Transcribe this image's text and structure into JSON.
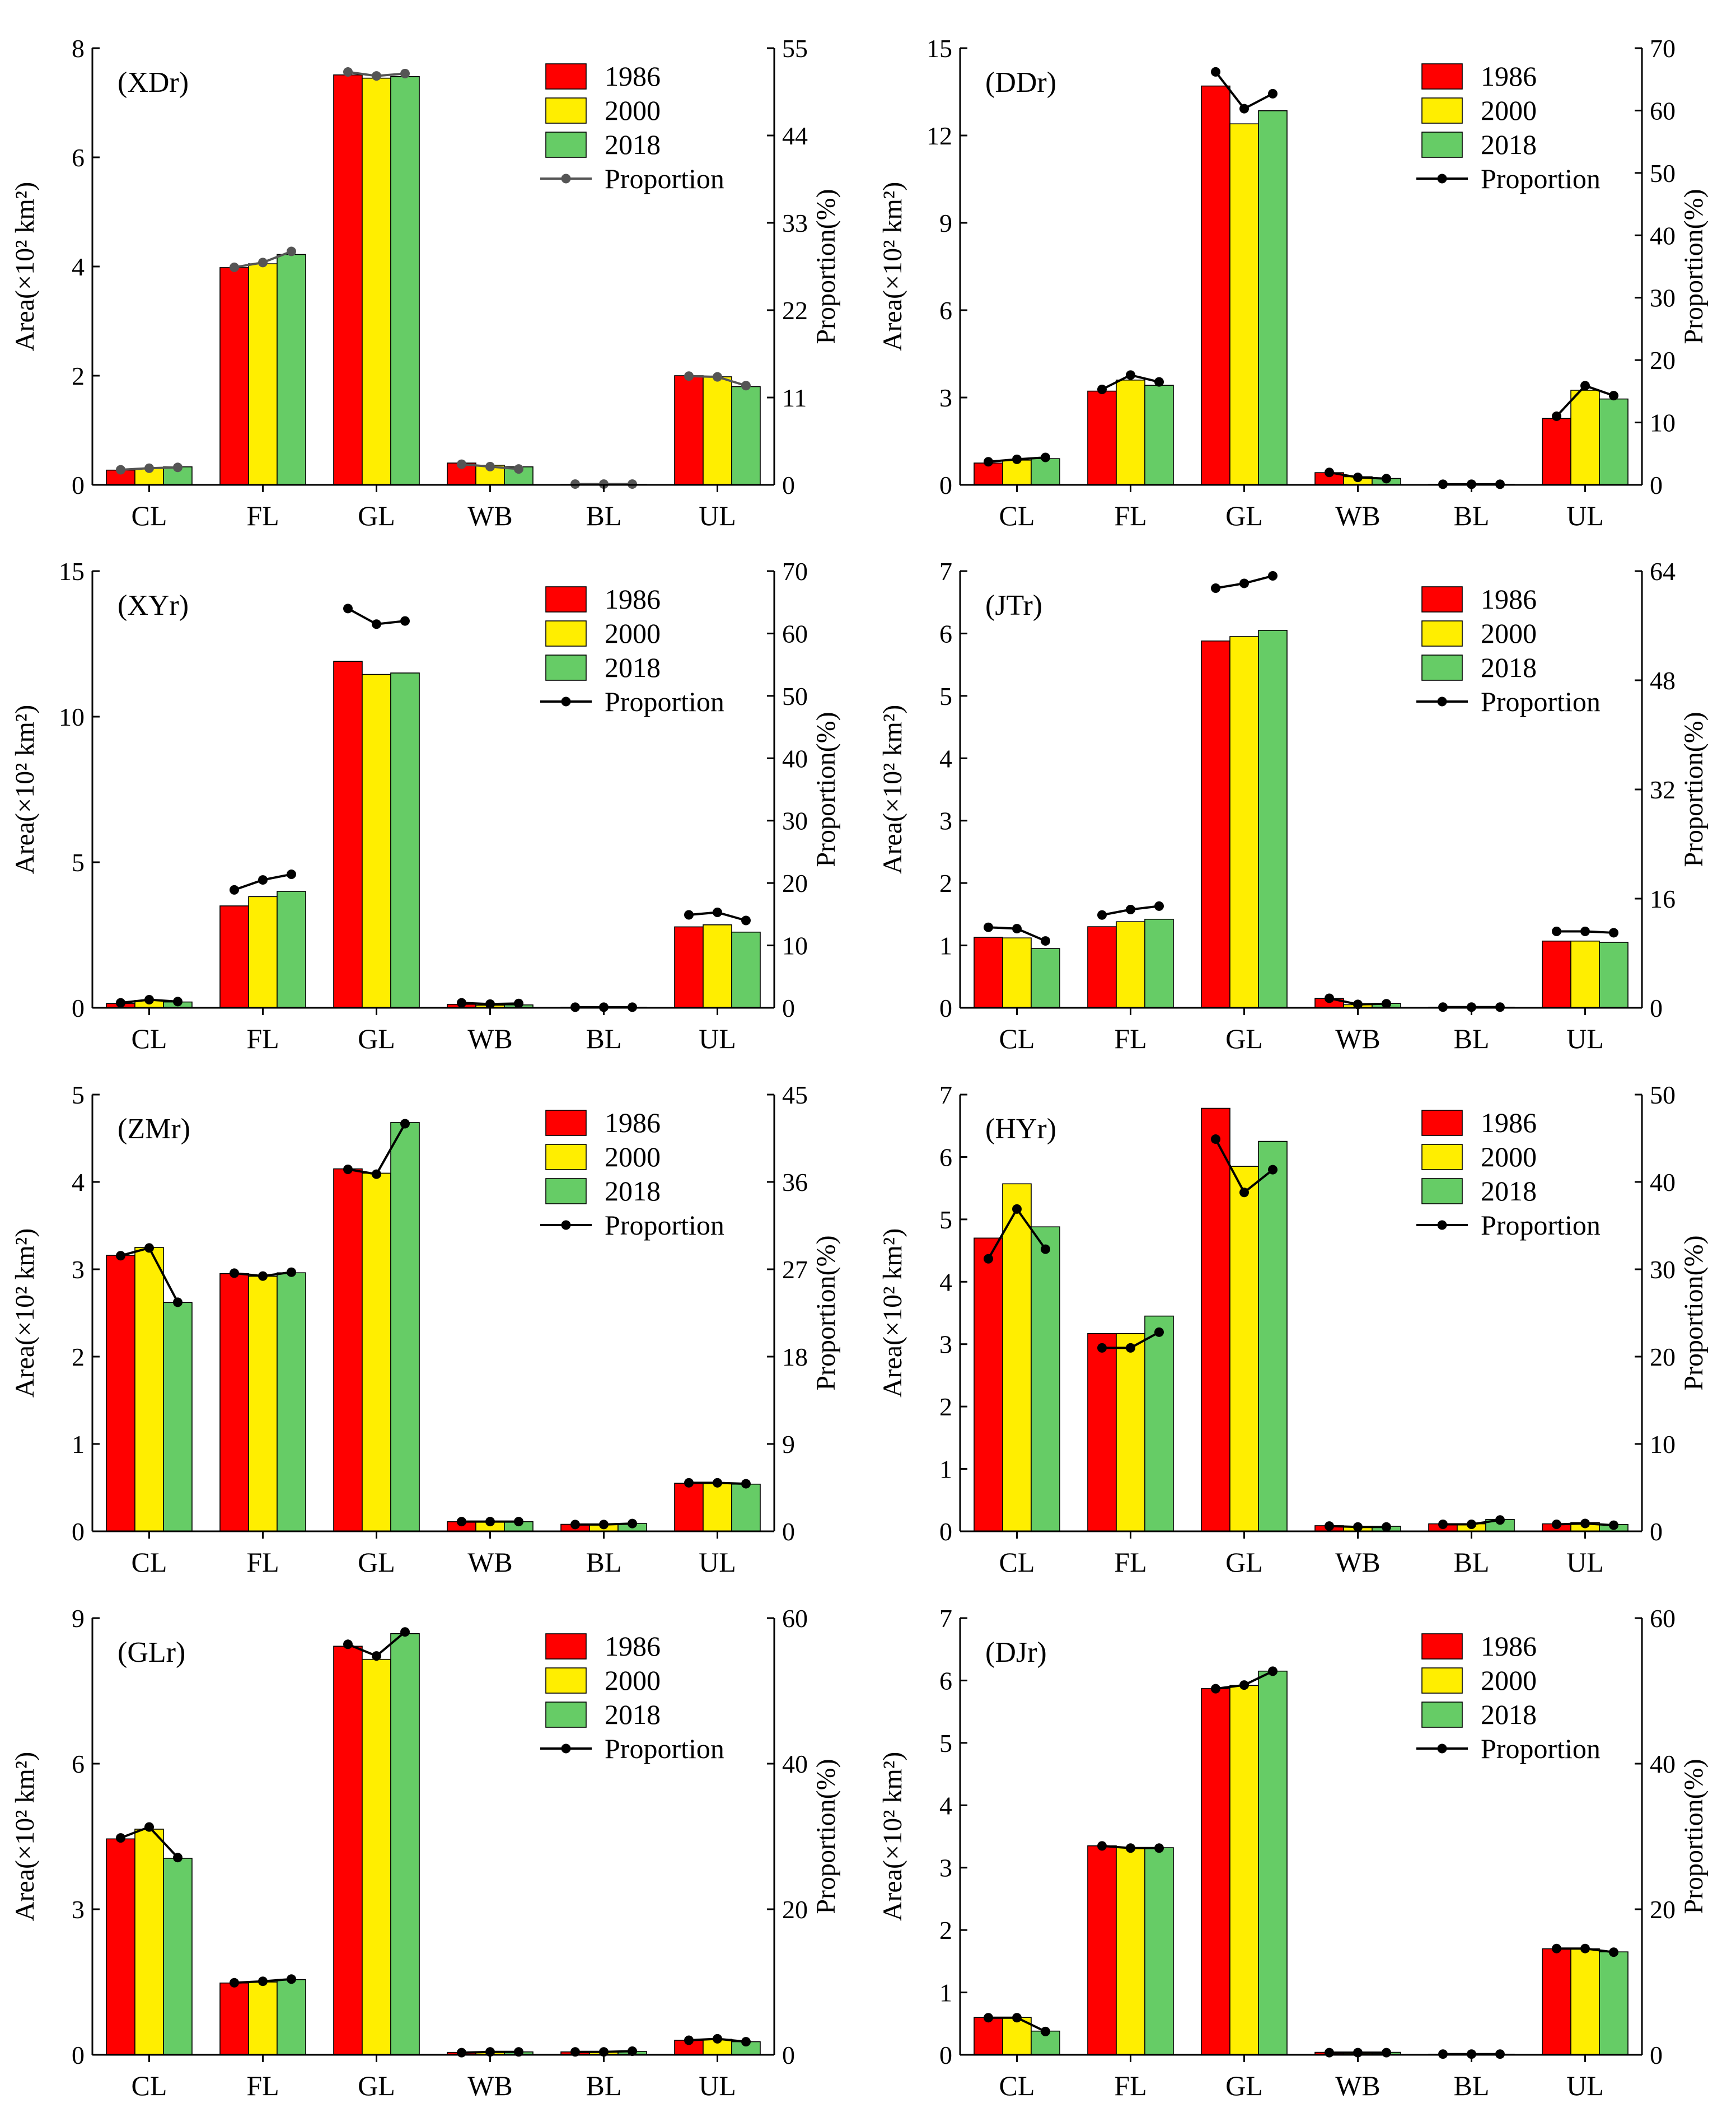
{
  "figure": {
    "categories": [
      "CL",
      "FL",
      "GL",
      "WB",
      "BL",
      "UL"
    ],
    "legend": [
      "1986",
      "2000",
      "2018",
      "Proportion"
    ],
    "y_left_label": "Area(×10² km²)",
    "y_right_label": "Proportion(%)",
    "colors": {
      "1986": "#ff0000",
      "2000": "#ffee00",
      "2018": "#66cc66",
      "line": "#000000",
      "line_alt": "#555555"
    }
  },
  "chart_data": [
    {
      "type": "bar",
      "panel_label": "(XDr)",
      "line_color": "#555555",
      "categories": [
        "CL",
        "FL",
        "GL",
        "WB",
        "BL",
        "UL"
      ],
      "ylim": [
        0,
        8
      ],
      "yticks": [
        0,
        2,
        4,
        6,
        8
      ],
      "y2lim": [
        0,
        55
      ],
      "y2ticks": [
        0,
        11,
        22,
        33,
        44,
        55
      ],
      "xlabel": "",
      "ylabel": "Area(×10² km²)",
      "y2label": "Proportion(%)",
      "series": [
        {
          "name": "1986",
          "values": [
            0.27,
            3.98,
            7.51,
            0.4,
            0.01,
            2.0
          ]
        },
        {
          "name": "2000",
          "values": [
            0.3,
            4.05,
            7.45,
            0.36,
            0.01,
            1.98
          ]
        },
        {
          "name": "2018",
          "values": [
            0.33,
            4.22,
            7.48,
            0.33,
            0.01,
            1.8
          ]
        }
      ],
      "proportion": [
        [
          1.9,
          2.1,
          2.2
        ],
        [
          27.4,
          28.0,
          29.4
        ],
        [
          52.0,
          51.5,
          51.8
        ],
        [
          2.6,
          2.3,
          2.0
        ],
        [
          0.1,
          0.1,
          0.1
        ],
        [
          13.7,
          13.6,
          12.5
        ]
      ]
    },
    {
      "type": "bar",
      "panel_label": "(DDr)",
      "line_color": "#000000",
      "categories": [
        "CL",
        "FL",
        "GL",
        "WB",
        "BL",
        "UL"
      ],
      "ylim": [
        0,
        15
      ],
      "yticks": [
        0,
        3,
        6,
        9,
        12,
        15
      ],
      "y2lim": [
        0,
        70
      ],
      "y2ticks": [
        0,
        10,
        20,
        30,
        40,
        50,
        60,
        70
      ],
      "xlabel": "",
      "ylabel": "Area(×10² km²)",
      "y2label": "Proportion(%)",
      "series": [
        {
          "name": "1986",
          "values": [
            0.75,
            3.22,
            13.7,
            0.42,
            0.02,
            2.28
          ]
        },
        {
          "name": "2000",
          "values": [
            0.85,
            3.6,
            12.4,
            0.28,
            0.02,
            3.25
          ]
        },
        {
          "name": "2018",
          "values": [
            0.9,
            3.42,
            12.85,
            0.22,
            0.02,
            2.95
          ]
        }
      ],
      "proportion": [
        [
          3.7,
          4.1,
          4.4
        ],
        [
          15.3,
          17.6,
          16.5
        ],
        [
          66.2,
          60.3,
          62.7
        ],
        [
          2.0,
          1.2,
          1.0
        ],
        [
          0.1,
          0.1,
          0.1
        ],
        [
          11.0,
          15.9,
          14.3
        ]
      ]
    },
    {
      "type": "bar",
      "panel_label": "(XYr)",
      "line_color": "#000000",
      "categories": [
        "CL",
        "FL",
        "GL",
        "WB",
        "BL",
        "UL"
      ],
      "ylim": [
        0,
        15
      ],
      "yticks": [
        0,
        5,
        10,
        15
      ],
      "y2lim": [
        0,
        70
      ],
      "y2ticks": [
        0,
        10,
        20,
        30,
        40,
        50,
        60,
        70
      ],
      "xlabel": "",
      "ylabel": "Area(×10² km²)",
      "y2label": "Proportion(%)",
      "series": [
        {
          "name": "1986",
          "values": [
            0.15,
            3.5,
            11.9,
            0.12,
            0.02,
            2.78
          ]
        },
        {
          "name": "2000",
          "values": [
            0.25,
            3.82,
            11.45,
            0.09,
            0.02,
            2.85
          ]
        },
        {
          "name": "2018",
          "values": [
            0.2,
            4.0,
            11.5,
            0.1,
            0.02,
            2.6
          ]
        }
      ],
      "proportion": [
        [
          0.8,
          1.3,
          1.0
        ],
        [
          18.9,
          20.5,
          21.4
        ],
        [
          64.0,
          61.5,
          62.0
        ],
        [
          0.8,
          0.6,
          0.7
        ],
        [
          0.1,
          0.1,
          0.1
        ],
        [
          14.9,
          15.3,
          14.0
        ]
      ]
    },
    {
      "type": "bar",
      "panel_label": "(JTr)",
      "line_color": "#000000",
      "categories": [
        "CL",
        "FL",
        "GL",
        "WB",
        "BL",
        "UL"
      ],
      "ylim": [
        0,
        7
      ],
      "yticks": [
        0,
        1,
        2,
        3,
        4,
        5,
        6,
        7
      ],
      "y2lim": [
        0,
        64
      ],
      "y2ticks": [
        0,
        16,
        32,
        48,
        64
      ],
      "xlabel": "",
      "ylabel": "Area(×10² km²)",
      "y2label": "Proportion(%)",
      "series": [
        {
          "name": "1986",
          "values": [
            1.13,
            1.3,
            5.88,
            0.15,
            0.01,
            1.07
          ]
        },
        {
          "name": "2000",
          "values": [
            1.12,
            1.38,
            5.95,
            0.05,
            0.01,
            1.07
          ]
        },
        {
          "name": "2018",
          "values": [
            0.95,
            1.42,
            6.05,
            0.07,
            0.01,
            1.05
          ]
        }
      ],
      "proportion": [
        [
          11.8,
          11.6,
          9.8
        ],
        [
          13.6,
          14.4,
          14.9
        ],
        [
          61.5,
          62.2,
          63.3
        ],
        [
          1.4,
          0.5,
          0.6
        ],
        [
          0.1,
          0.1,
          0.1
        ],
        [
          11.2,
          11.2,
          11.0
        ]
      ]
    },
    {
      "type": "bar",
      "panel_label": "(ZMr)",
      "line_color": "#000000",
      "categories": [
        "CL",
        "FL",
        "GL",
        "WB",
        "BL",
        "UL"
      ],
      "ylim": [
        0,
        5
      ],
      "yticks": [
        0,
        1,
        2,
        3,
        4,
        5
      ],
      "y2lim": [
        0,
        45
      ],
      "y2ticks": [
        0,
        9,
        18,
        27,
        36,
        45
      ],
      "xlabel": "",
      "ylabel": "Area(×10² km²)",
      "y2label": "Proportion(%)",
      "series": [
        {
          "name": "1986",
          "values": [
            3.16,
            2.95,
            4.15,
            0.11,
            0.08,
            0.55
          ]
        },
        {
          "name": "2000",
          "values": [
            3.25,
            2.92,
            4.1,
            0.11,
            0.08,
            0.55
          ]
        },
        {
          "name": "2018",
          "values": [
            2.62,
            2.96,
            4.68,
            0.11,
            0.09,
            0.54
          ]
        }
      ],
      "proportion": [
        [
          28.4,
          29.2,
          23.6
        ],
        [
          26.6,
          26.3,
          26.7
        ],
        [
          37.3,
          36.8,
          42.0
        ],
        [
          1.0,
          1.0,
          1.0
        ],
        [
          0.7,
          0.7,
          0.8
        ],
        [
          5.0,
          5.0,
          4.9
        ]
      ]
    },
    {
      "type": "bar",
      "panel_label": "(HYr)",
      "line_color": "#000000",
      "categories": [
        "CL",
        "FL",
        "GL",
        "WB",
        "BL",
        "UL"
      ],
      "ylim": [
        0,
        7
      ],
      "yticks": [
        0,
        1,
        2,
        3,
        4,
        5,
        6,
        7
      ],
      "y2lim": [
        0,
        50
      ],
      "y2ticks": [
        0,
        10,
        20,
        30,
        40,
        50
      ],
      "xlabel": "",
      "ylabel": "Area(×10² km²)",
      "y2label": "Proportion(%)",
      "series": [
        {
          "name": "1986",
          "values": [
            4.7,
            3.17,
            6.78,
            0.09,
            0.12,
            0.12
          ]
        },
        {
          "name": "2000",
          "values": [
            5.57,
            3.17,
            5.85,
            0.08,
            0.12,
            0.14
          ]
        },
        {
          "name": "2018",
          "values": [
            4.88,
            3.45,
            6.25,
            0.08,
            0.19,
            0.11
          ]
        }
      ],
      "proportion": [
        [
          31.2,
          36.9,
          32.3
        ],
        [
          21.0,
          21.0,
          22.8
        ],
        [
          44.9,
          38.8,
          41.4
        ],
        [
          0.6,
          0.5,
          0.5
        ],
        [
          0.8,
          0.8,
          1.3
        ],
        [
          0.8,
          0.9,
          0.7
        ]
      ]
    },
    {
      "type": "bar",
      "panel_label": "(GLr)",
      "line_color": "#000000",
      "categories": [
        "CL",
        "FL",
        "GL",
        "WB",
        "BL",
        "UL"
      ],
      "ylim": [
        0,
        9
      ],
      "yticks": [
        0,
        3,
        6,
        9
      ],
      "y2lim": [
        0,
        60
      ],
      "y2ticks": [
        0,
        20,
        40,
        60
      ],
      "xlabel": "",
      "ylabel": "Area(×10² km²)",
      "y2label": "Proportion(%)",
      "series": [
        {
          "name": "1986",
          "values": [
            4.45,
            1.48,
            8.42,
            0.05,
            0.06,
            0.3
          ]
        },
        {
          "name": "2000",
          "values": [
            4.65,
            1.5,
            8.15,
            0.06,
            0.06,
            0.32
          ]
        },
        {
          "name": "2018",
          "values": [
            4.05,
            1.55,
            8.68,
            0.06,
            0.07,
            0.27
          ]
        }
      ],
      "proportion": [
        [
          29.8,
          31.3,
          27.1
        ],
        [
          9.9,
          10.1,
          10.4
        ],
        [
          56.4,
          54.8,
          58.1
        ],
        [
          0.3,
          0.4,
          0.4
        ],
        [
          0.4,
          0.4,
          0.5
        ],
        [
          2.0,
          2.2,
          1.8
        ]
      ]
    },
    {
      "type": "bar",
      "panel_label": "(DJr)",
      "line_color": "#000000",
      "categories": [
        "CL",
        "FL",
        "GL",
        "WB",
        "BL",
        "UL"
      ],
      "ylim": [
        0,
        7
      ],
      "yticks": [
        0,
        1,
        2,
        3,
        4,
        5,
        6,
        7
      ],
      "y2lim": [
        0,
        60
      ],
      "y2ticks": [
        0,
        20,
        40,
        60
      ],
      "xlabel": "",
      "ylabel": "Area(×10² km²)",
      "y2label": "Proportion(%)",
      "series": [
        {
          "name": "1986",
          "values": [
            0.6,
            3.35,
            5.87,
            0.04,
            0.01,
            1.7
          ]
        },
        {
          "name": "2000",
          "values": [
            0.6,
            3.32,
            5.92,
            0.04,
            0.01,
            1.7
          ]
        },
        {
          "name": "2018",
          "values": [
            0.38,
            3.32,
            6.15,
            0.04,
            0.01,
            1.65
          ]
        }
      ],
      "proportion": [
        [
          5.1,
          5.1,
          3.2
        ],
        [
          28.7,
          28.4,
          28.4
        ],
        [
          50.3,
          50.8,
          52.7
        ],
        [
          0.3,
          0.3,
          0.3
        ],
        [
          0.1,
          0.1,
          0.1
        ],
        [
          14.6,
          14.6,
          14.1
        ]
      ]
    }
  ]
}
